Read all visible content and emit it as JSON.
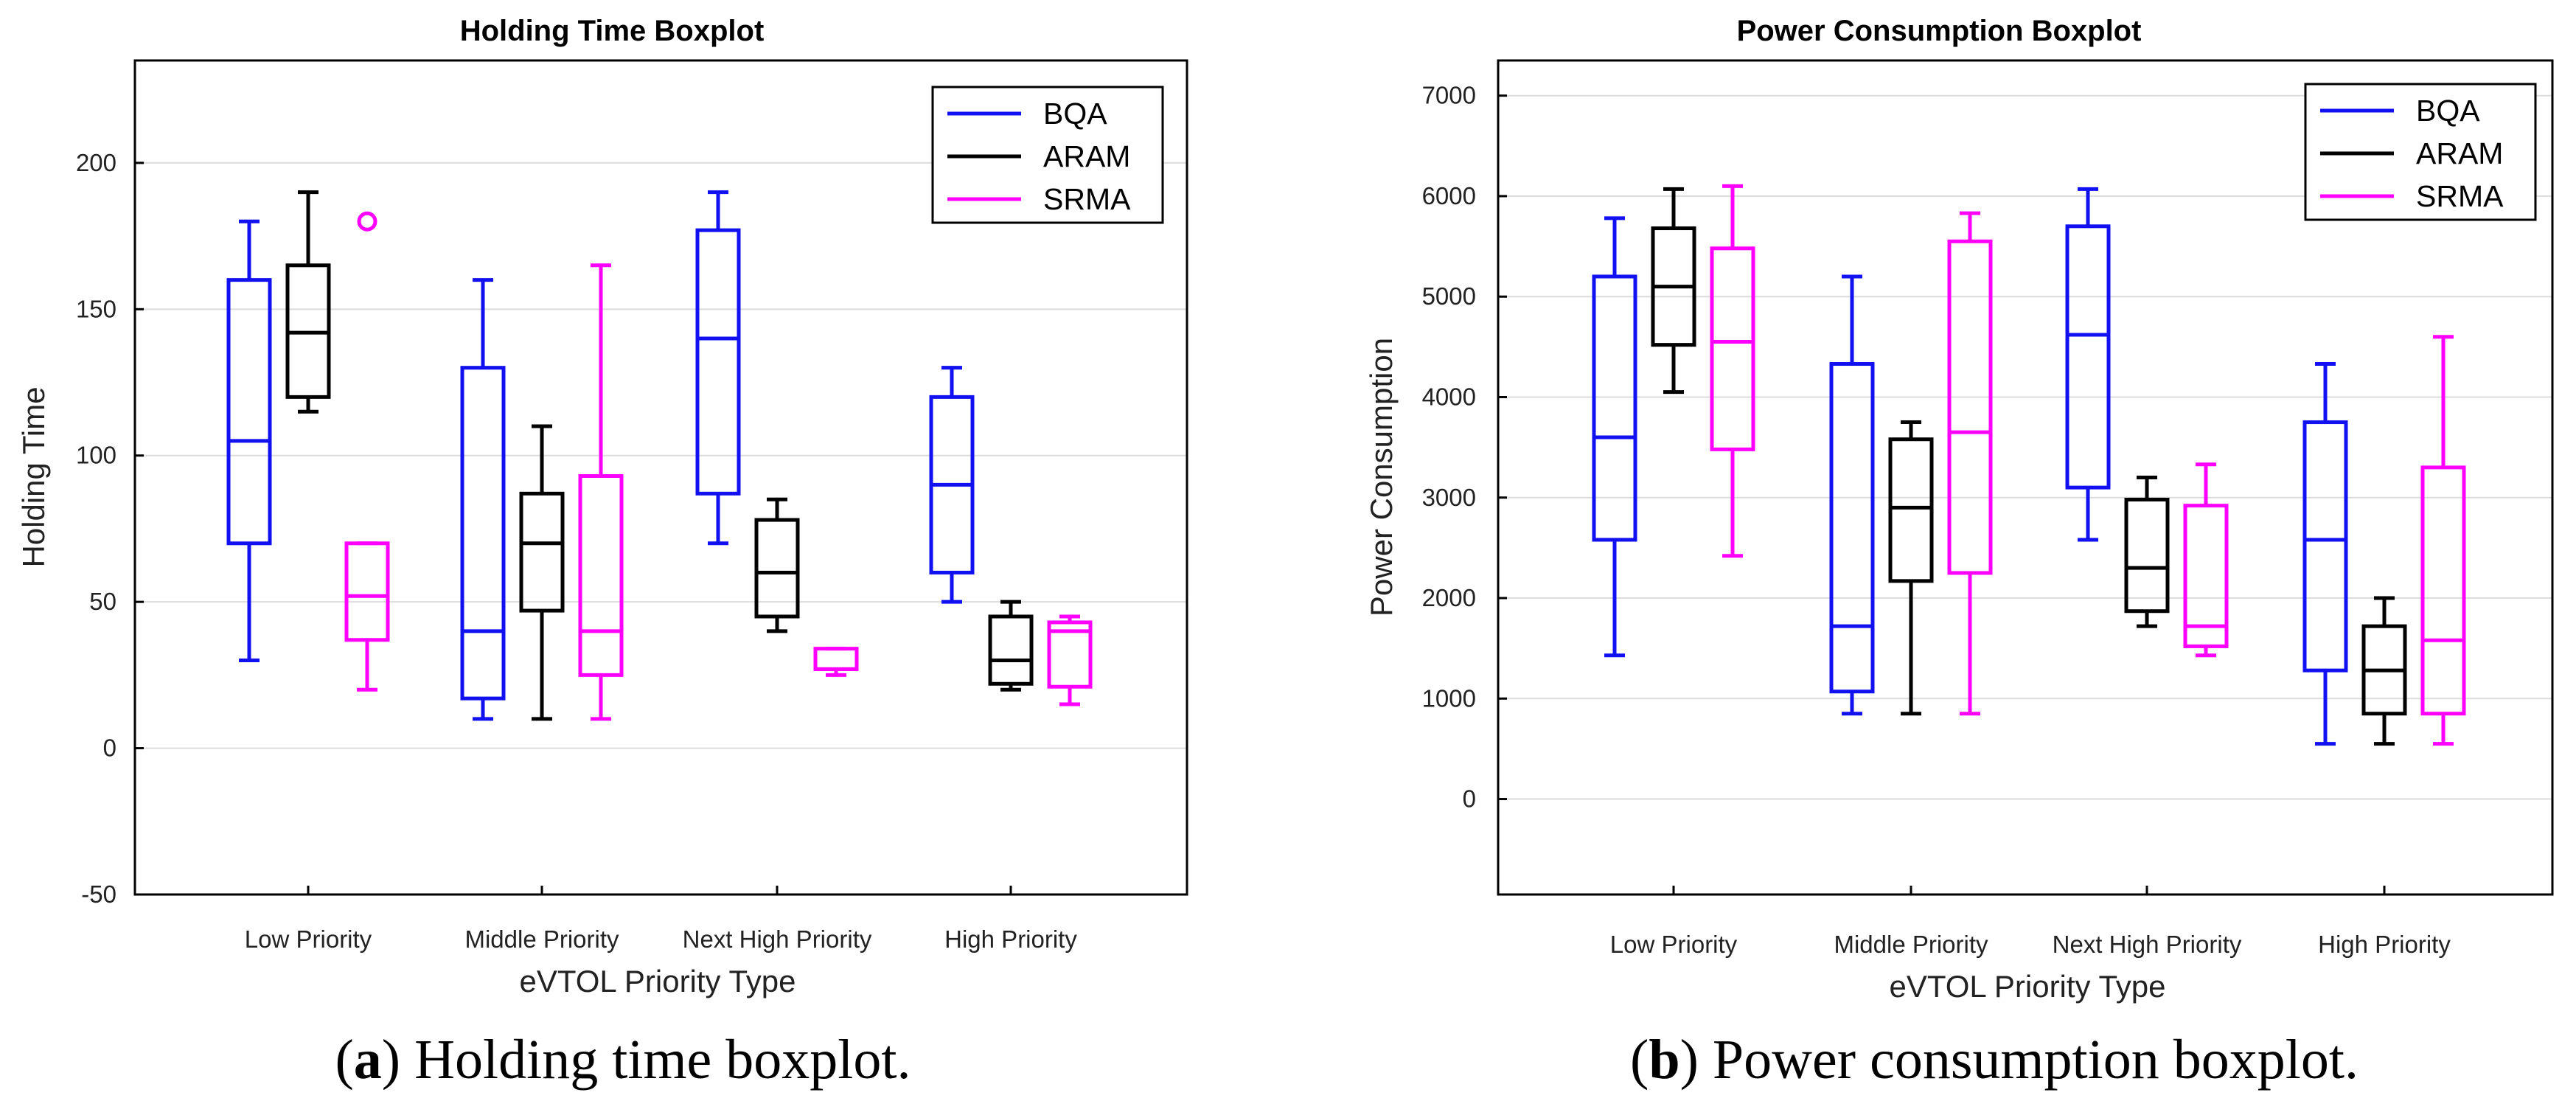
{
  "chart_data": [
    {
      "type": "boxplot",
      "title": "Holding Time Boxplot",
      "xlabel": "eVTOL Priority Type",
      "ylabel": "Holding Time",
      "ylim": [
        -50,
        235
      ],
      "yticks": [
        -50,
        0,
        50,
        100,
        150,
        200
      ],
      "grid": true,
      "legend_position": "top-right",
      "categories": [
        "Low Priority",
        "Middle Priority",
        "Next High Priority",
        "High Priority"
      ],
      "series": [
        {
          "name": "BQA",
          "color": "#1010f0",
          "boxes": [
            {
              "min": 30,
              "q1": 70,
              "median": 105,
              "q3": 160,
              "max": 180
            },
            {
              "min": 10,
              "q1": 17,
              "median": 40,
              "q3": 130,
              "max": 160
            },
            {
              "min": 70,
              "q1": 87,
              "median": 140,
              "q3": 177,
              "max": 190
            },
            {
              "min": 50,
              "q1": 60,
              "median": 90,
              "q3": 120,
              "max": 130
            }
          ]
        },
        {
          "name": "ARAM",
          "color": "#000000",
          "boxes": [
            {
              "min": 115,
              "q1": 120,
              "median": 142,
              "q3": 165,
              "max": 190
            },
            {
              "min": 10,
              "q1": 47,
              "median": 70,
              "q3": 87,
              "max": 110
            },
            {
              "min": 40,
              "q1": 45,
              "median": 60,
              "q3": 78,
              "max": 85
            },
            {
              "min": 20,
              "q1": 22,
              "median": 30,
              "q3": 45,
              "max": 50
            }
          ]
        },
        {
          "name": "SRMA",
          "color": "#ff00ff",
          "boxes": [
            {
              "min": 20,
              "q1": 37,
              "median": 52,
              "q3": 70,
              "max": 70,
              "outliers": [
                180
              ]
            },
            {
              "min": 10,
              "q1": 25,
              "median": 40,
              "q3": 93,
              "max": 165
            },
            {
              "min": 25,
              "q1": 27,
              "median": 27,
              "q3": 34,
              "max": 34
            },
            {
              "min": 15,
              "q1": 21,
              "median": 40,
              "q3": 43,
              "max": 45
            }
          ]
        }
      ],
      "caption_letter": "a",
      "caption_text": "Holding time boxplot."
    },
    {
      "type": "boxplot",
      "title": "Power Consumption Boxplot",
      "xlabel": "eVTOL Priority Type",
      "ylabel": "Power Consumption",
      "ylim": [
        -950,
        7350
      ],
      "yticks": [
        0,
        1000,
        2000,
        3000,
        4000,
        5000,
        6000,
        7000
      ],
      "grid": true,
      "legend_position": "top-right",
      "categories": [
        "Low Priority",
        "Middle Priority",
        "Next High Priority",
        "High Priority"
      ],
      "series": [
        {
          "name": "BQA",
          "color": "#1010f0",
          "boxes": [
            {
              "min": 1430,
              "q1": 2580,
              "median": 3600,
              "q3": 5200,
              "max": 5780
            },
            {
              "min": 850,
              "q1": 1070,
              "median": 1720,
              "q3": 4330,
              "max": 5200
            },
            {
              "min": 2580,
              "q1": 3100,
              "median": 4620,
              "q3": 5700,
              "max": 6070
            },
            {
              "min": 550,
              "q1": 1280,
              "median": 2580,
              "q3": 3750,
              "max": 4330
            }
          ]
        },
        {
          "name": "ARAM",
          "color": "#000000",
          "boxes": [
            {
              "min": 4050,
              "q1": 4520,
              "median": 5100,
              "q3": 5680,
              "max": 6070
            },
            {
              "min": 850,
              "q1": 2170,
              "median": 2900,
              "q3": 3580,
              "max": 3750
            },
            {
              "min": 1720,
              "q1": 1870,
              "median": 2300,
              "q3": 2980,
              "max": 3200
            },
            {
              "min": 550,
              "q1": 850,
              "median": 1280,
              "q3": 1720,
              "max": 2000
            }
          ]
        },
        {
          "name": "SRMA",
          "color": "#ff00ff",
          "boxes": [
            {
              "min": 2420,
              "q1": 3480,
              "median": 4550,
              "q3": 5480,
              "max": 6100
            },
            {
              "min": 850,
              "q1": 2250,
              "median": 3650,
              "q3": 5550,
              "max": 5830
            },
            {
              "min": 1430,
              "q1": 1520,
              "median": 1720,
              "q3": 2920,
              "max": 3330
            },
            {
              "min": 550,
              "q1": 850,
              "median": 1580,
              "q3": 3300,
              "max": 4600
            }
          ]
        }
      ],
      "caption_letter": "b",
      "caption_text": "Power consumption boxplot."
    }
  ]
}
